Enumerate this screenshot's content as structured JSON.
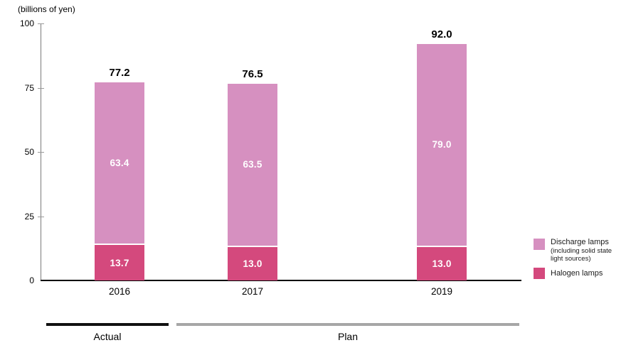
{
  "chart_data": {
    "type": "bar",
    "stacked": true,
    "title": "(billions of yen)",
    "categories": [
      "2016",
      "2017",
      "2019"
    ],
    "series": [
      {
        "name": "Halogen lamps",
        "color": "#d4497d",
        "values": [
          13.7,
          13.0,
          13.0
        ],
        "labels": [
          "13.7",
          "13.0",
          "13.0"
        ]
      },
      {
        "name": "Discharge lamps (including solid state light sources)",
        "color": "#d690c0",
        "values": [
          63.4,
          63.5,
          79.0
        ],
        "labels": [
          "63.4",
          "63.5",
          "79.0"
        ]
      }
    ],
    "totals": [
      77.2,
      76.5,
      92.0
    ],
    "total_labels": [
      "77.2",
      "76.5",
      "92.0"
    ],
    "ylim": [
      0,
      100
    ],
    "y_ticks": [
      0,
      25,
      50,
      75,
      100
    ],
    "grid": false,
    "legend_position": "right"
  },
  "legend": {
    "items": [
      {
        "color": "#d690c0",
        "lines": [
          "Discharge lamps",
          "(including solid state",
          "light sources)"
        ]
      },
      {
        "color": "#d4497d",
        "lines": [
          "Halogen lamps"
        ]
      }
    ]
  },
  "periods": [
    {
      "label": "Actual",
      "bar_color": "#111111"
    },
    {
      "label": "Plan",
      "bar_color": "#a6a6a6"
    }
  ]
}
